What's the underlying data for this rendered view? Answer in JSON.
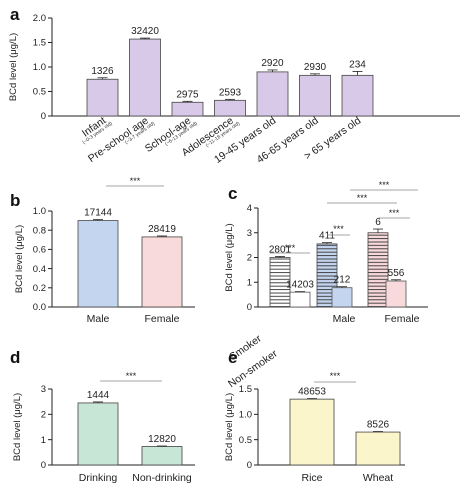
{
  "chart_data": [
    {
      "panel": "a",
      "type": "bar",
      "ylabel": "BCd level (μg/L)",
      "ylim": [
        0,
        2.0
      ],
      "yticks": [
        "0",
        "0.5",
        "1.0",
        "1.5",
        "2.0"
      ],
      "categories": [
        "Infant",
        "Pre-school age",
        "School-age",
        "Adolescence",
        "19-45 years old",
        "46-65 years old",
        "> 65 years old"
      ],
      "subcategories": [
        "(~0-3 years old)",
        "(~3-7 years old)",
        "(~6-13 years old)",
        "(~11-18 years old)",
        "",
        "",
        ""
      ],
      "values": [
        0.75,
        1.57,
        0.28,
        0.32,
        0.9,
        0.83,
        0.83
      ],
      "errors": [
        0.03,
        0.02,
        0.02,
        0.02,
        0.04,
        0.03,
        0.08
      ],
      "labels": [
        "1326",
        "32420",
        "2975",
        "2593",
        "2920",
        "2930",
        "234"
      ],
      "colors": [
        "#d9c9e8"
      ],
      "significance": []
    },
    {
      "panel": "b",
      "type": "bar",
      "ylabel": "BCd level (μg/L)",
      "ylim": [
        0,
        1.0
      ],
      "yticks": [
        "0.0",
        "0.2",
        "0.4",
        "0.6",
        "0.8",
        "1.0"
      ],
      "categories": [
        "Male",
        "Female"
      ],
      "values": [
        0.9,
        0.73
      ],
      "errors": [
        0.01,
        0.01
      ],
      "labels": [
        "17144",
        "28419"
      ],
      "colors": [
        "#c4d5f0",
        "#f8d9dc"
      ],
      "significance": [
        {
          "from": 0,
          "to": 1,
          "label": "***"
        }
      ]
    },
    {
      "panel": "c",
      "type": "bar",
      "ylabel": "BCd level (μg/L)",
      "ylim": [
        0,
        4
      ],
      "yticks": [
        "0",
        "1",
        "2",
        "3",
        "4"
      ],
      "categories": [
        "Smoker",
        "Non-smoker",
        "Male",
        "Female"
      ],
      "values": [
        2.0,
        0.6,
        2.55,
        0.78,
        3.0,
        1.05
      ],
      "errors": [
        0.04,
        0.02,
        0.05,
        0.04,
        0.15,
        0.05
      ],
      "labels": [
        "2801",
        "14203",
        "411",
        "212",
        "6",
        "556"
      ],
      "colors": [
        "#ffffff",
        "#c4d5f0",
        "#f8d9dc"
      ],
      "significance": [
        {
          "from": 0,
          "to": 1,
          "label": "***"
        },
        {
          "from": 2,
          "to": 3,
          "label": "***"
        },
        {
          "from": 4,
          "to": 5,
          "label": "***"
        },
        {
          "from": 2,
          "to": 4,
          "label": "***"
        },
        {
          "from": 3,
          "to": 5,
          "label": "***"
        }
      ]
    },
    {
      "panel": "d",
      "type": "bar",
      "ylabel": "BCd level (μg/L)",
      "ylim": [
        0,
        3
      ],
      "yticks": [
        "0",
        "1",
        "2",
        "3"
      ],
      "categories": [
        "Drinking",
        "Non-drinking"
      ],
      "values": [
        2.45,
        0.73
      ],
      "errors": [
        0.04,
        0.02
      ],
      "labels": [
        "1444",
        "12820"
      ],
      "colors": [
        "#c8e6d5"
      ],
      "significance": [
        {
          "from": 0,
          "to": 1,
          "label": "***"
        }
      ]
    },
    {
      "panel": "e",
      "type": "bar",
      "ylabel": "BCd level (μg/L)",
      "ylim": [
        0,
        1.5
      ],
      "yticks": [
        "0",
        "0.5",
        "1.0",
        "1.5"
      ],
      "categories": [
        "Rice",
        "Wheat"
      ],
      "values": [
        1.3,
        0.65
      ],
      "errors": [
        0.01,
        0.01
      ],
      "labels": [
        "48653",
        "8526"
      ],
      "colors": [
        "#fbf5cc"
      ],
      "significance": [
        {
          "from": 0,
          "to": 1,
          "label": "***"
        }
      ]
    }
  ]
}
